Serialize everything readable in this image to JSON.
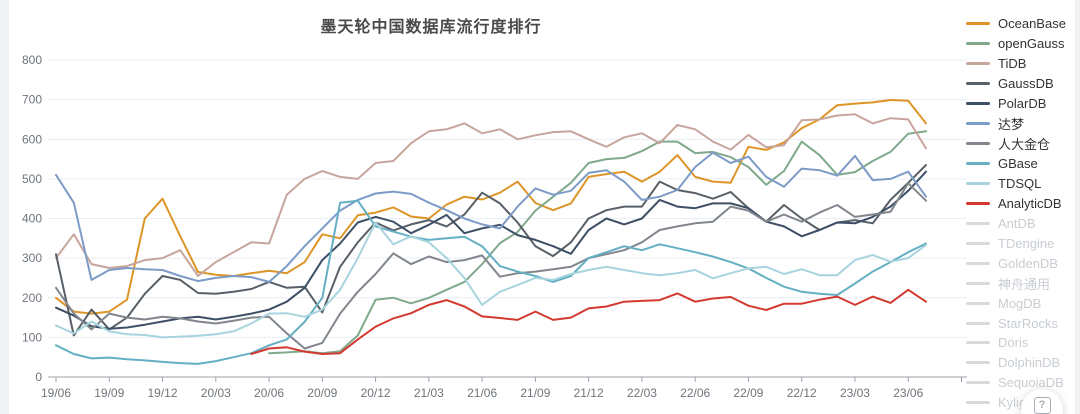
{
  "title": "墨天轮中国数据库流行度排行",
  "help_icon": "?",
  "colors": {
    "grid": "#e9eef6",
    "axis": "#9ba1a8",
    "tick_text": "#6e757c",
    "title_text": "#4a4a4a",
    "legend_text": "#333333",
    "legend_disabled_text": "#c8cdd2",
    "disabled_swatch": "#d8dbde"
  },
  "legend": {
    "items": [
      {
        "label": "OceanBase",
        "disabled": false
      },
      {
        "label": "openGauss",
        "disabled": false
      },
      {
        "label": "TiDB",
        "disabled": false
      },
      {
        "label": "GaussDB",
        "disabled": false
      },
      {
        "label": "PolarDB",
        "disabled": false
      },
      {
        "label": "达梦",
        "disabled": false
      },
      {
        "label": "人大金仓",
        "disabled": false
      },
      {
        "label": "GBase",
        "disabled": false
      },
      {
        "label": "TDSQL",
        "disabled": false
      },
      {
        "label": "AnalyticDB",
        "disabled": false
      },
      {
        "label": "AntDB",
        "disabled": true
      },
      {
        "label": "TDengine",
        "disabled": true
      },
      {
        "label": "GoldenDB",
        "disabled": true
      },
      {
        "label": "神舟通用",
        "disabled": true
      },
      {
        "label": "MogDB",
        "disabled": true
      },
      {
        "label": "StarRocks",
        "disabled": true
      },
      {
        "label": "Doris",
        "disabled": true
      },
      {
        "label": "DolphinDB",
        "disabled": true
      },
      {
        "label": "SequoiaDB",
        "disabled": true
      },
      {
        "label": "Kyligence",
        "disabled": true
      }
    ]
  },
  "chart_data": {
    "type": "line",
    "title": "墨天轮中国数据库流行度排行",
    "ylim": [
      0,
      800
    ],
    "y_ticks": [
      0,
      100,
      200,
      300,
      400,
      500,
      600,
      700,
      800
    ],
    "x_tick_labels": [
      "19/06",
      "19/09",
      "19/12",
      "20/03",
      "20/06",
      "20/09",
      "20/12",
      "21/03",
      "21/06",
      "21/09",
      "21/12",
      "22/03",
      "22/06",
      "22/09",
      "22/12",
      "23/03",
      "23/06"
    ],
    "months": [
      "19/06",
      "19/07",
      "19/08",
      "19/09",
      "19/10",
      "19/11",
      "19/12",
      "20/01",
      "20/02",
      "20/03",
      "20/04",
      "20/05",
      "20/06",
      "20/07",
      "20/08",
      "20/09",
      "20/10",
      "20/11",
      "20/12",
      "21/01",
      "21/02",
      "21/03",
      "21/04",
      "21/05",
      "21/06",
      "21/07",
      "21/08",
      "21/09",
      "21/10",
      "21/11",
      "21/12",
      "22/01",
      "22/02",
      "22/03",
      "22/04",
      "22/05",
      "22/06",
      "22/07",
      "22/08",
      "22/09",
      "22/10",
      "22/11",
      "22/12",
      "23/01",
      "23/02",
      "23/03",
      "23/04",
      "23/05",
      "23/06",
      "23/07"
    ],
    "grid": true,
    "legend_position": "right",
    "series": [
      {
        "name": "OceanBase",
        "color": "#dd9527",
        "start": 0,
        "values": [
          200,
          165,
          160,
          165,
          195,
          400,
          450,
          355,
          265,
          258,
          255,
          262,
          268,
          262,
          290,
          360,
          350,
          408,
          415,
          428,
          405,
          400,
          435,
          455,
          448,
          465,
          493,
          439,
          421,
          438,
          505,
          512,
          518,
          493,
          518,
          560,
          505,
          493,
          490,
          581,
          573,
          592,
          628,
          650,
          686,
          690,
          693,
          699,
          697,
          640
        ]
      },
      {
        "name": "openGauss",
        "color": "#7fa98a",
        "start": 12,
        "values": [
          60,
          62,
          65,
          60,
          65,
          105,
          195,
          200,
          186,
          200,
          220,
          240,
          285,
          338,
          366,
          420,
          455,
          490,
          540,
          550,
          553,
          570,
          594,
          594,
          565,
          568,
          555,
          530,
          485,
          520,
          594,
          560,
          510,
          517,
          545,
          568,
          614,
          620
        ]
      },
      {
        "name": "TiDB",
        "color": "#c7a59d",
        "start": 0,
        "values": [
          300,
          360,
          285,
          275,
          280,
          295,
          300,
          320,
          255,
          290,
          315,
          340,
          337,
          460,
          500,
          520,
          505,
          500,
          540,
          545,
          590,
          620,
          625,
          640,
          615,
          625,
          600,
          610,
          618,
          620,
          600,
          581,
          605,
          615,
          590,
          636,
          625,
          594,
          574,
          611,
          580,
          585,
          648,
          650,
          660,
          663,
          640,
          653,
          650,
          577
        ]
      },
      {
        "name": "GaussDB",
        "color": "#585f66",
        "start": 0,
        "values": [
          310,
          105,
          170,
          120,
          150,
          210,
          255,
          245,
          212,
          210,
          215,
          222,
          240,
          225,
          228,
          163,
          278,
          340,
          390,
          370,
          385,
          396,
          380,
          410,
          465,
          438,
          390,
          330,
          305,
          340,
          400,
          421,
          430,
          430,
          493,
          472,
          464,
          450,
          467,
          426,
          392,
          434,
          400,
          371,
          390,
          396,
          388,
          447,
          490,
          535
        ]
      },
      {
        "name": "PolarDB",
        "color": "#3d4f66",
        "start": 0,
        "values": [
          175,
          155,
          128,
          122,
          125,
          132,
          140,
          148,
          152,
          145,
          152,
          160,
          170,
          190,
          225,
          295,
          337,
          390,
          404,
          392,
          363,
          384,
          409,
          363,
          375,
          384,
          358,
          346,
          330,
          311,
          371,
          400,
          385,
          400,
          447,
          430,
          426,
          438,
          438,
          426,
          392,
          380,
          355,
          371,
          390,
          388,
          404,
          430,
          470,
          518
        ]
      },
      {
        "name": "达梦",
        "color": "#7d9bc7",
        "start": 0,
        "values": [
          510,
          440,
          245,
          270,
          275,
          272,
          270,
          255,
          242,
          250,
          255,
          252,
          240,
          280,
          330,
          375,
          420,
          447,
          463,
          468,
          462,
          440,
          421,
          400,
          385,
          375,
          430,
          476,
          460,
          470,
          515,
          522,
          493,
          447,
          455,
          472,
          530,
          566,
          540,
          556,
          505,
          480,
          526,
          522,
          508,
          558,
          497,
          500,
          518,
          455
        ]
      },
      {
        "name": "人大金仓",
        "color": "#80868c",
        "start": 0,
        "values": [
          225,
          160,
          120,
          160,
          150,
          145,
          152,
          148,
          140,
          135,
          142,
          150,
          152,
          110,
          72,
          86,
          160,
          215,
          260,
          312,
          285,
          304,
          290,
          295,
          307,
          253,
          262,
          266,
          272,
          278,
          300,
          310,
          320,
          340,
          371,
          380,
          388,
          392,
          430,
          420,
          392,
          410,
          392,
          415,
          434,
          404,
          410,
          417,
          489,
          445
        ]
      },
      {
        "name": "GBase",
        "color": "#64afc4",
        "start": 0,
        "values": [
          80,
          58,
          47,
          49,
          45,
          42,
          38,
          35,
          33,
          40,
          50,
          60,
          80,
          95,
          139,
          200,
          440,
          445,
          380,
          367,
          354,
          346,
          350,
          354,
          330,
          280,
          266,
          255,
          240,
          255,
          300,
          315,
          330,
          320,
          335,
          325,
          315,
          304,
          290,
          274,
          250,
          228,
          215,
          210,
          207,
          236,
          266,
          290,
          315,
          337
        ]
      },
      {
        "name": "TDSQL",
        "color": "#a8d4dd",
        "start": 0,
        "values": [
          130,
          110,
          140,
          115,
          108,
          106,
          100,
          102,
          104,
          108,
          115,
          135,
          160,
          161,
          152,
          170,
          220,
          300,
          390,
          335,
          355,
          340,
          300,
          250,
          182,
          215,
          232,
          250,
          245,
          260,
          270,
          278,
          270,
          262,
          257,
          262,
          270,
          249,
          262,
          274,
          278,
          260,
          272,
          257,
          257,
          295,
          308,
          291,
          300,
          333
        ]
      },
      {
        "name": "AnalyticDB",
        "color": "#d23a30",
        "start": 11,
        "values": [
          58,
          72,
          75,
          64,
          58,
          60,
          95,
          127,
          148,
          161,
          182,
          194,
          178,
          153,
          149,
          144,
          165,
          144,
          150,
          173,
          178,
          190,
          192,
          194,
          211,
          190,
          198,
          202,
          180,
          169,
          185,
          185,
          195,
          203,
          182,
          203,
          187,
          220,
          190
        ]
      }
    ]
  }
}
